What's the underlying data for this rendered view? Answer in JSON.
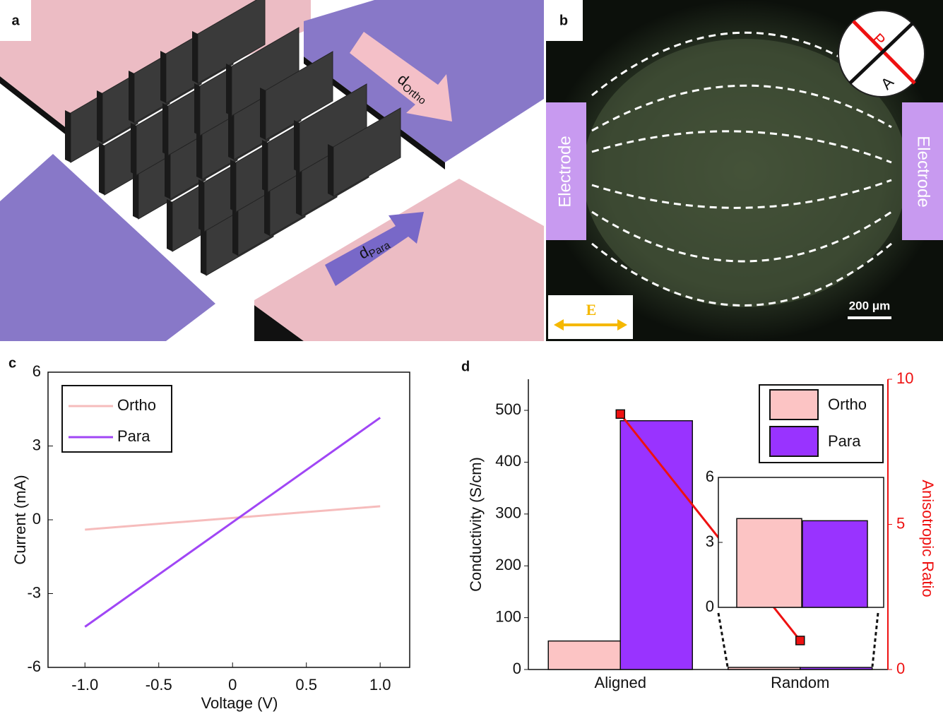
{
  "panel_a": {
    "label": "a",
    "d_ortho": {
      "base": "d",
      "sub": "Ortho"
    },
    "d_para": {
      "base": "d",
      "sub": "Para"
    }
  },
  "panel_b": {
    "label": "b",
    "electrode_left": "Electrode",
    "electrode_right": "Electrode",
    "polarizer": "P",
    "analyzer": "A",
    "field": "E",
    "scale_bar": "200 μm"
  },
  "chart_data": [
    {
      "type": "line",
      "label": "c",
      "x_label": "Voltage (V)",
      "y_label": "Current (mA)",
      "x": [
        -1,
        1
      ],
      "series": [
        {
          "name": "Ortho",
          "color": "#f6bcbc",
          "values": [
            -0.4,
            0.55
          ]
        },
        {
          "name": "Para",
          "color": "#a046f5",
          "values": [
            -4.35,
            4.15
          ]
        }
      ],
      "xlim": [
        -1.25,
        1.2
      ],
      "xticks": [
        {
          "value": -1,
          "label": "-1.0"
        },
        -0.5,
        0,
        0.5,
        {
          "value": 1,
          "label": "1.0"
        }
      ],
      "ylim": [
        -6,
        6
      ],
      "yticks": [
        -6,
        -3,
        0,
        3,
        6
      ],
      "legend": "upper-left"
    },
    {
      "type": "bar",
      "label": "d",
      "y_label": "Conductivity (S/cm)",
      "y2_label": "Anisotropic Ratio",
      "categories": [
        "Aligned",
        "Random"
      ],
      "series": [
        {
          "name": "Ortho",
          "color": "#fcc4c4",
          "values": [
            55,
            4.1
          ]
        },
        {
          "name": "Para",
          "color": "#9933ff",
          "values": [
            480,
            4.0
          ]
        },
        {
          "type": "line",
          "axis": "y2",
          "color": "#ee1111",
          "values": [
            8.8,
            1.0
          ]
        }
      ],
      "ylim": [
        0,
        560
      ],
      "yticks": [
        0,
        100,
        200,
        300,
        400,
        500
      ],
      "y2lim": [
        0,
        10
      ],
      "y2ticks": [
        0,
        5,
        10
      ],
      "inset_ylim": [
        0,
        6
      ],
      "inset_yticks": [
        0,
        3,
        6
      ],
      "legend": "upper-right"
    }
  ]
}
